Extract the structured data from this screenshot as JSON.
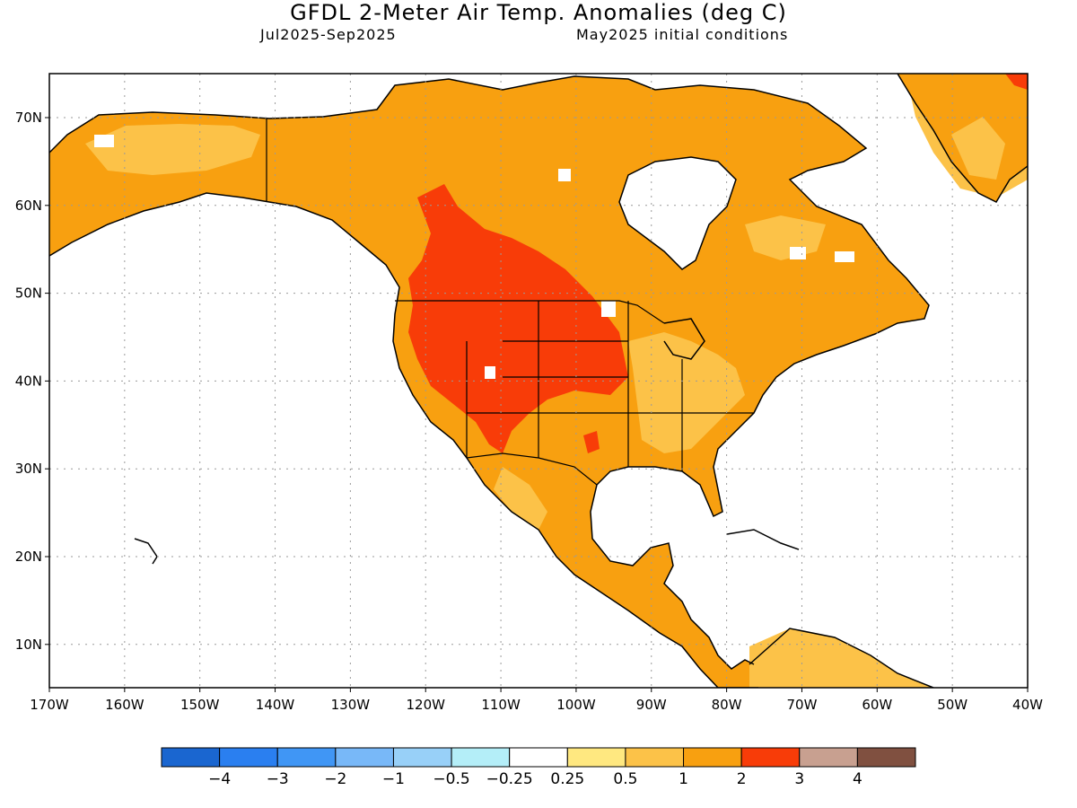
{
  "title": "GFDL 2-Meter Air Temp. Anomalies (deg C)",
  "subtitle_left": "Jul2025-Sep2025",
  "subtitle_right": "May2025 initial conditions",
  "colors": {
    "ocean": "#ffffff",
    "coast": "#000000",
    "grid": "#9a9a9a",
    "bins": [
      "#1a66d0",
      "#2a7ff0",
      "#4096f5",
      "#78b8f8",
      "#98d0f8",
      "#b4eef8",
      "#ffffff",
      "#ffe880",
      "#fcc248",
      "#f8a010",
      "#f83c08",
      "#c8a090",
      "#805040"
    ]
  },
  "lon_ticks": [
    "170W",
    "160W",
    "150W",
    "140W",
    "130W",
    "120W",
    "110W",
    "100W",
    "90W",
    "80W",
    "70W",
    "60W",
    "50W",
    "40W"
  ],
  "lat_ticks": [
    "70N",
    "60N",
    "50N",
    "40N",
    "30N",
    "20N",
    "10N"
  ],
  "colorbar": {
    "labels": [
      "-4",
      "-3",
      "-2",
      "-1",
      "-0.5",
      "-0.25",
      "0.25",
      "0.5",
      "1",
      "2",
      "3",
      "4"
    ],
    "bins": 13
  }
}
